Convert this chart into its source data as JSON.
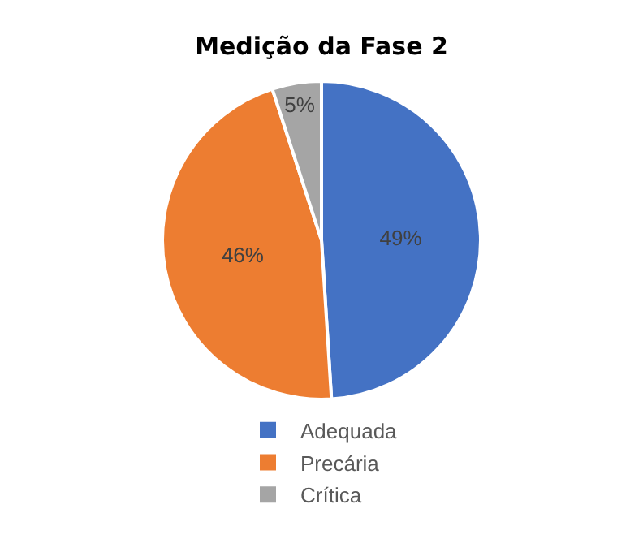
{
  "chart_data": {
    "type": "pie",
    "title": "Medição da Fase 2",
    "categories": [
      "Adequada",
      "Precária",
      "Crítica"
    ],
    "values": [
      49,
      46,
      5
    ],
    "colors": [
      "#4472c4",
      "#ed7d31",
      "#a5a5a5"
    ],
    "value_labels": [
      "49%",
      "46%",
      "5%"
    ],
    "legend": "bottom"
  }
}
